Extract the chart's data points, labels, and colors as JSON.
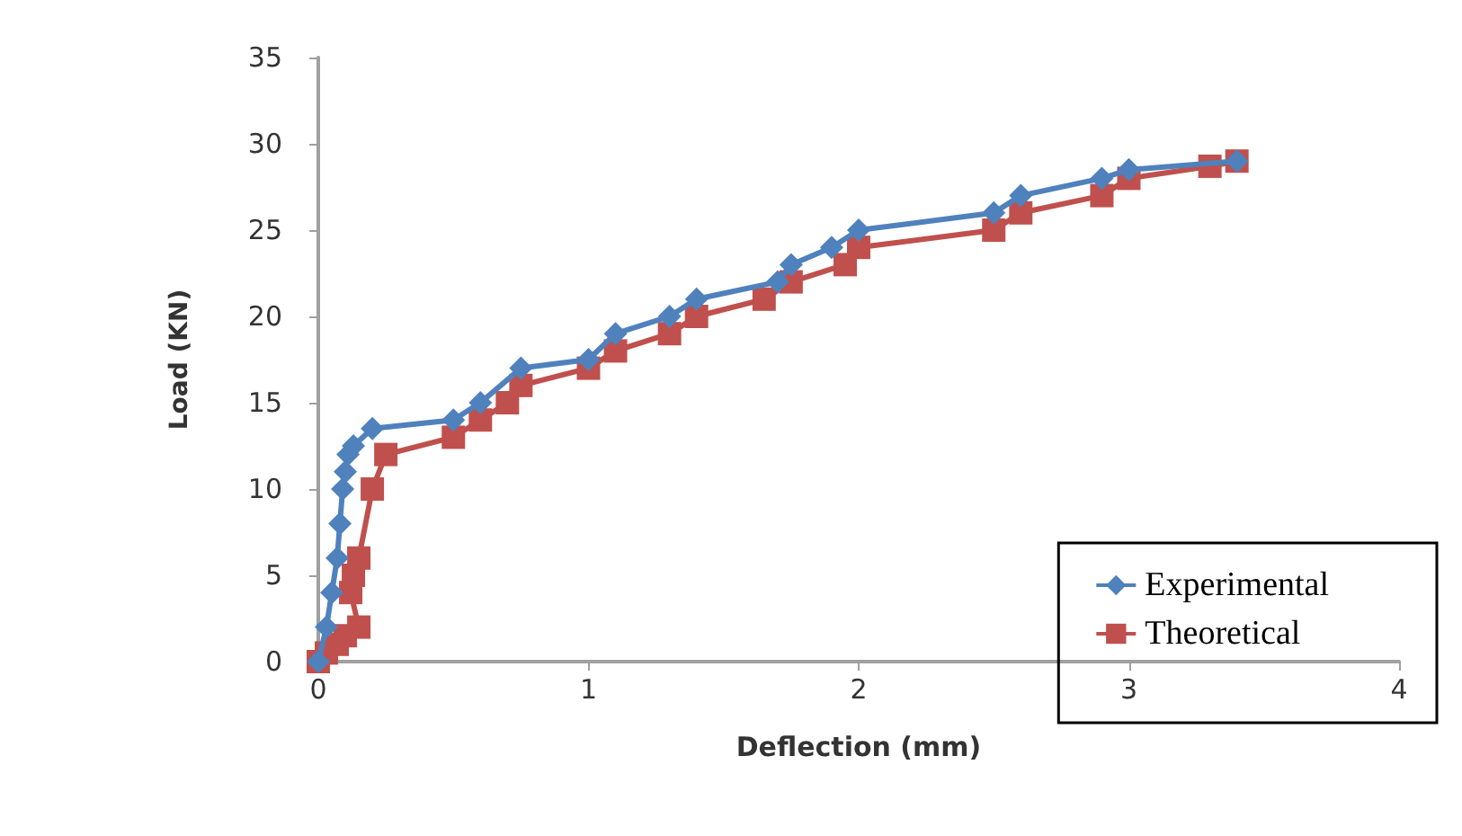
{
  "chart_data": {
    "type": "line",
    "xlabel": "Deflection (mm)",
    "ylabel": "Load (KN)",
    "xlim": [
      0,
      4
    ],
    "xticks": [
      0,
      1,
      2,
      3,
      4
    ],
    "ylim": [
      0,
      35
    ],
    "yticks": [
      0,
      5,
      10,
      15,
      20,
      25,
      30,
      35
    ],
    "grid": false,
    "legend": "bottom right",
    "line_style": "solid",
    "series": [
      {
        "name": "Experimental",
        "color": "#4f81bd",
        "marker": "diamond",
        "x": [
          0,
          0.03,
          0.05,
          0.07,
          0.08,
          0.09,
          0.1,
          0.11,
          0.13,
          0.2,
          0.5,
          0.6,
          0.75,
          1.0,
          1.1,
          1.3,
          1.4,
          1.7,
          1.75,
          1.9,
          2.0,
          2.5,
          2.6,
          2.9,
          3.0,
          3.4
        ],
        "values": [
          0,
          2,
          4,
          6,
          8,
          10,
          11,
          12,
          12.5,
          13.5,
          14,
          15,
          17,
          17.5,
          19,
          20,
          21,
          22,
          23,
          24,
          25,
          26,
          27,
          28,
          28.5,
          29
        ]
      },
      {
        "name": "Theoretical",
        "color": "#c0504d",
        "marker": "square",
        "x": [
          0,
          0.03,
          0.07,
          0.1,
          0.15,
          0.12,
          0.13,
          0.15,
          0.2,
          0.25,
          0.5,
          0.6,
          0.7,
          0.75,
          1.0,
          1.1,
          1.3,
          1.4,
          1.65,
          1.75,
          1.95,
          2.0,
          2.5,
          2.6,
          2.9,
          3.0,
          3.3,
          3.4
        ],
        "values": [
          0,
          0.5,
          1,
          1.5,
          2,
          4,
          5,
          6,
          10,
          12,
          13,
          14,
          15,
          16,
          17,
          18,
          19,
          20,
          21,
          22,
          23,
          24,
          25,
          26,
          27,
          28,
          28.7,
          29
        ]
      }
    ]
  }
}
